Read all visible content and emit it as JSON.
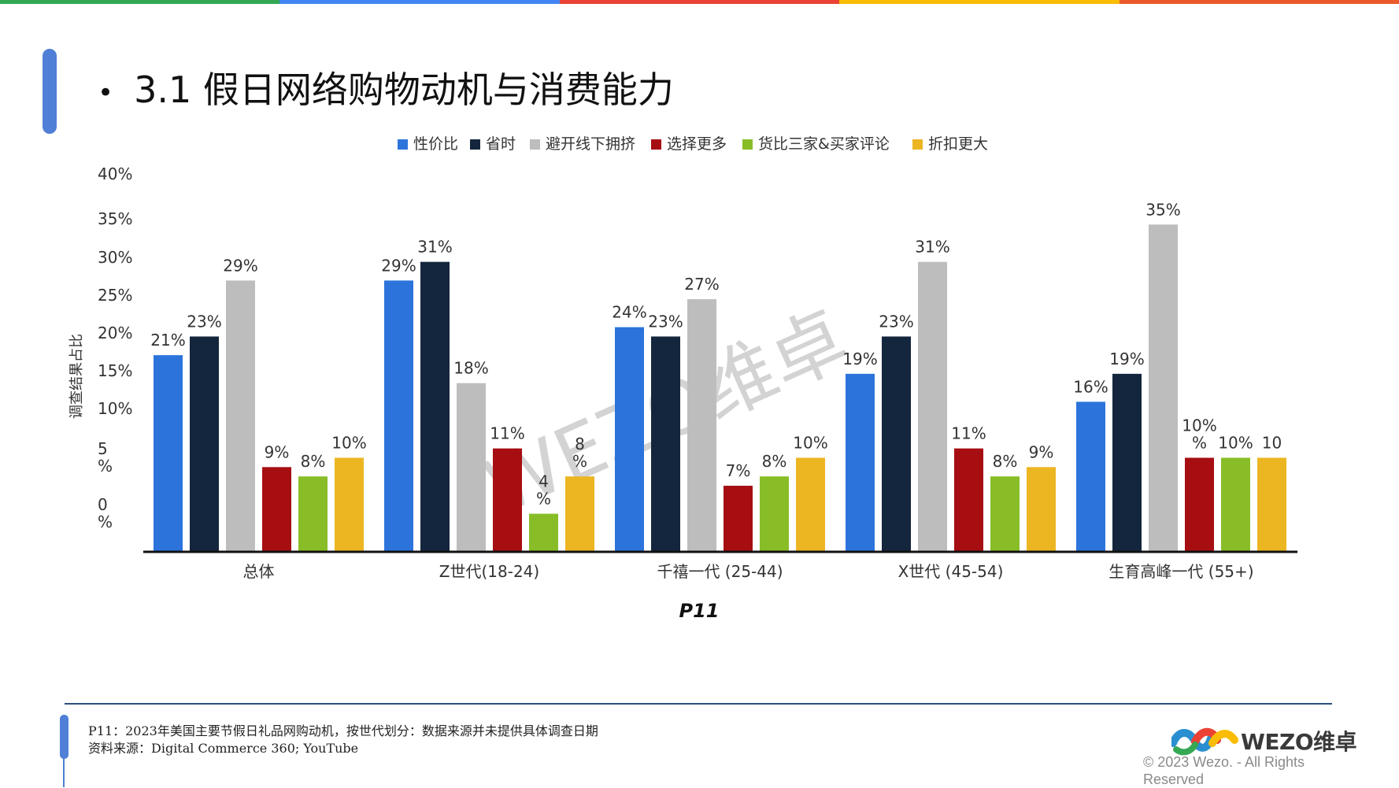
{
  "top_bar_colors": [
    "#34a853",
    "#4285f4",
    "#ea4335",
    "#fbbc05",
    "#ea5a2b"
  ],
  "title": "3.1 假日网络购物动机与消费能力",
  "chart_data": {
    "type": "bar",
    "categories": [
      "总体",
      "Z世代(18-24)",
      "千禧一代 (25-44)",
      "X世代 (45-54)",
      "生育高峰一代 (55+)"
    ],
    "series": [
      {
        "name": "性价比",
        "color": "#2c74dc",
        "values": [
          21,
          29,
          24,
          19,
          16
        ],
        "labels": [
          "21%",
          "29%",
          "24%",
          "19%",
          "16%"
        ]
      },
      {
        "name": "省时",
        "color": "#14263d",
        "values": [
          23,
          31,
          23,
          23,
          19
        ],
        "labels": [
          "23%",
          "31%",
          "23%",
          "23%",
          "19%"
        ]
      },
      {
        "name": "避开线下拥挤",
        "color": "#bdbdbd",
        "values": [
          29,
          18,
          27,
          31,
          35
        ],
        "labels": [
          "29%",
          "18%",
          "27%",
          "31%",
          "35%"
        ]
      },
      {
        "name": "选择更多",
        "color": "#a60e12",
        "values": [
          9,
          11,
          7,
          11,
          10
        ],
        "labels": [
          "9%",
          "11%",
          "7%",
          "11%",
          "10%\n%"
        ]
      },
      {
        "name": "货比三家&买家评论",
        "color": "#88bd27",
        "values": [
          8,
          4,
          8,
          8,
          10
        ],
        "labels": [
          "8%",
          "4\n%",
          "8%",
          "8%",
          "10%"
        ]
      },
      {
        "name": "折扣更大",
        "color": "#ecb522",
        "values": [
          10,
          8,
          10,
          9,
          10
        ],
        "labels": [
          "10%",
          "8\n%",
          "10%",
          "9%",
          "10"
        ]
      }
    ],
    "y_ticks": [
      "40%",
      "35%",
      "30%",
      "25%",
      "20%",
      "15%",
      "10%",
      "5\n%",
      "0\n%"
    ],
    "ylabel": "调查结果占比",
    "xlabel": "P11",
    "legend_position": "top",
    "grid": false,
    "watermark": "WEZO维卓"
  },
  "footer": {
    "note": "P11：2023年美国主要节假日礼品网购动机，按世代划分：数据来源并未提供具体调查日期",
    "source": "资料来源：Digital Commerce 360; YouTube",
    "logo_text": "WEZO维卓",
    "copyright": "© 2023 Wezo. - All Rights Reserved"
  }
}
